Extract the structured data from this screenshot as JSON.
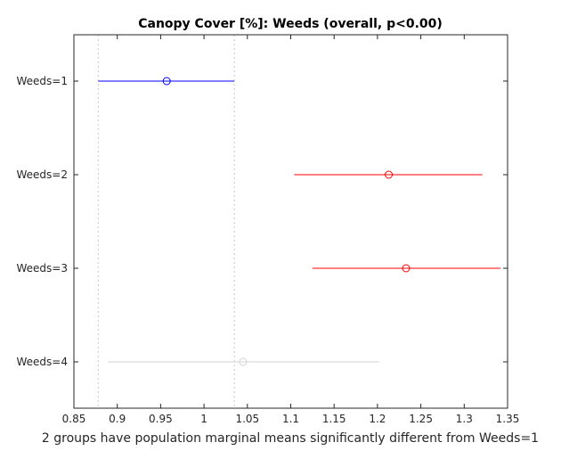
{
  "chart_data": {
    "type": "scatter",
    "title": "Canopy Cover [%]: Weeds (overall, p<0.00)",
    "xlabel": "2 groups have population marginal means significantly different from Weeds=1",
    "ylabel": "",
    "xlim": [
      0.85,
      1.35
    ],
    "x_ticks": [
      "0.85",
      "0.9",
      "0.95",
      "1",
      "1.05",
      "1.1",
      "1.15",
      "1.2",
      "1.25",
      "1.3",
      "1.35"
    ],
    "x_tick_values": [
      0.85,
      0.9,
      0.95,
      1.0,
      1.05,
      1.1,
      1.15,
      1.2,
      1.25,
      1.3,
      1.35
    ],
    "grid": false,
    "reference_lines": [
      0.878,
      1.035
    ],
    "groups": [
      {
        "label": "Weeds=1",
        "mean": 0.957,
        "lower": 0.878,
        "upper": 1.035,
        "color": "#0000ff"
      },
      {
        "label": "Weeds=2",
        "mean": 1.213,
        "lower": 1.104,
        "upper": 1.321,
        "color": "#ff0000"
      },
      {
        "label": "Weeds=3",
        "mean": 1.233,
        "lower": 1.125,
        "upper": 1.342,
        "color": "#ff0000"
      },
      {
        "label": "Weeds=4",
        "mean": 1.045,
        "lower": 0.889,
        "upper": 1.202,
        "color": "#d3d3d3"
      }
    ]
  }
}
